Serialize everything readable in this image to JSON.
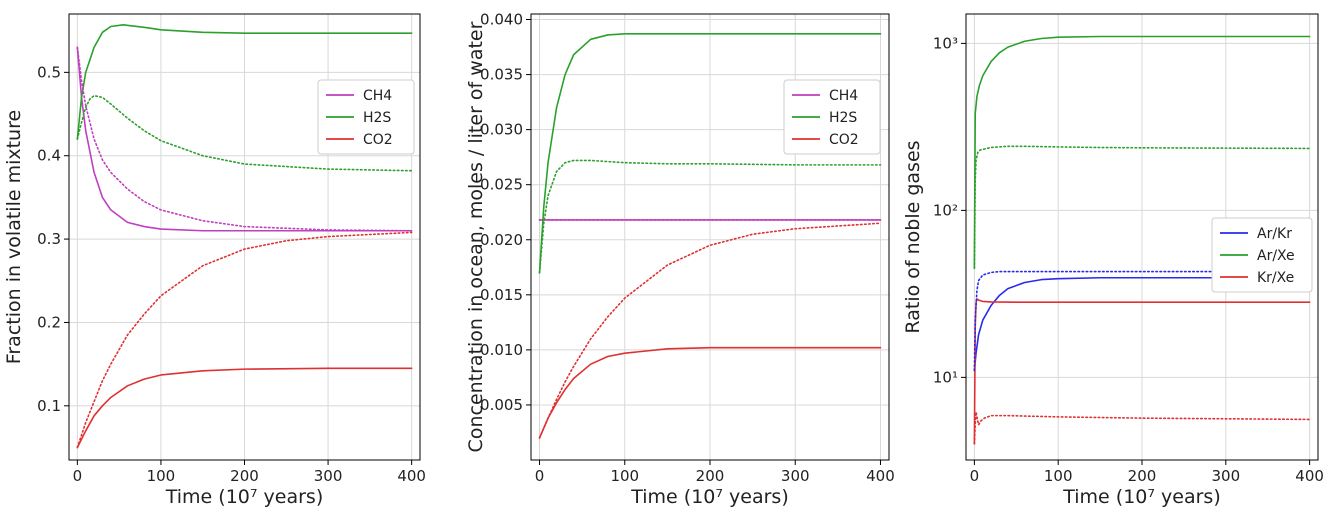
{
  "chart_data": [
    {
      "type": "line",
      "xlabel": "Time (10⁷ years)",
      "ylabel": "Fraction in volatile mixture",
      "xlim": [
        -10,
        410
      ],
      "ylim": [
        0.035,
        0.57
      ],
      "yscale": "linear",
      "xticks": [
        0,
        100,
        200,
        300,
        400
      ],
      "xtick_labels": [
        "0",
        "100",
        "200",
        "300",
        "400"
      ],
      "yticks": [
        0.1,
        0.2,
        0.3,
        0.4,
        0.5
      ],
      "ytick_labels": [
        "0.1",
        "0.2",
        "0.3",
        "0.4",
        "0.5"
      ],
      "grid": true,
      "legend": {
        "placement": "upper-right",
        "entries": [
          {
            "label": "CH4",
            "color": "#bf3fbf"
          },
          {
            "label": "H2S",
            "color": "#2ca02c"
          },
          {
            "label": "CO2",
            "color": "#e03030"
          }
        ]
      },
      "series": [
        {
          "color": "#bf3fbf",
          "style": "solid",
          "x": [
            0,
            5,
            10,
            20,
            30,
            40,
            60,
            80,
            100,
            150,
            200,
            300,
            400
          ],
          "y": [
            0.53,
            0.47,
            0.43,
            0.38,
            0.35,
            0.335,
            0.32,
            0.315,
            0.312,
            0.31,
            0.31,
            0.31,
            0.31
          ]
        },
        {
          "color": "#2ca02c",
          "style": "solid",
          "x": [
            0,
            5,
            10,
            20,
            30,
            40,
            55,
            80,
            100,
            150,
            200,
            300,
            400
          ],
          "y": [
            0.42,
            0.47,
            0.5,
            0.53,
            0.548,
            0.555,
            0.557,
            0.554,
            0.551,
            0.548,
            0.547,
            0.547,
            0.547
          ]
        },
        {
          "color": "#e03030",
          "style": "solid",
          "x": [
            0,
            10,
            20,
            30,
            40,
            60,
            80,
            100,
            150,
            200,
            300,
            400
          ],
          "y": [
            0.05,
            0.07,
            0.088,
            0.1,
            0.11,
            0.124,
            0.132,
            0.137,
            0.142,
            0.144,
            0.145,
            0.145
          ]
        },
        {
          "color": "#bf3fbf",
          "style": "dotted",
          "x": [
            0,
            5,
            10,
            20,
            30,
            40,
            60,
            80,
            100,
            150,
            200,
            300,
            400
          ],
          "y": [
            0.53,
            0.49,
            0.46,
            0.42,
            0.395,
            0.38,
            0.36,
            0.345,
            0.335,
            0.322,
            0.315,
            0.311,
            0.31
          ]
        },
        {
          "color": "#2ca02c",
          "style": "dotted",
          "x": [
            0,
            5,
            10,
            15,
            20,
            30,
            40,
            60,
            80,
            100,
            150,
            200,
            300,
            400
          ],
          "y": [
            0.42,
            0.44,
            0.458,
            0.468,
            0.472,
            0.47,
            0.462,
            0.445,
            0.43,
            0.418,
            0.4,
            0.39,
            0.384,
            0.382
          ]
        },
        {
          "color": "#e03030",
          "style": "dotted",
          "x": [
            0,
            10,
            20,
            30,
            40,
            60,
            80,
            100,
            150,
            200,
            250,
            300,
            400
          ],
          "y": [
            0.05,
            0.08,
            0.105,
            0.13,
            0.15,
            0.185,
            0.21,
            0.232,
            0.268,
            0.288,
            0.298,
            0.303,
            0.308
          ]
        }
      ]
    },
    {
      "type": "line",
      "xlabel": "Time (10⁷ years)",
      "ylabel": "Concentration in ocean, moles / liter of water",
      "xlim": [
        -10,
        410
      ],
      "ylim": [
        0.0,
        0.0405
      ],
      "yscale": "linear",
      "xticks": [
        0,
        100,
        200,
        300,
        400
      ],
      "xtick_labels": [
        "0",
        "100",
        "200",
        "300",
        "400"
      ],
      "yticks": [
        0.005,
        0.01,
        0.015,
        0.02,
        0.025,
        0.03,
        0.035,
        0.04
      ],
      "ytick_labels": [
        "0.005",
        "0.010",
        "0.015",
        "0.020",
        "0.025",
        "0.030",
        "0.035",
        "0.040"
      ],
      "grid": true,
      "legend": {
        "placement": "upper-right",
        "entries": [
          {
            "label": "CH4",
            "color": "#bf3fbf"
          },
          {
            "label": "H2S",
            "color": "#2ca02c"
          },
          {
            "label": "CO2",
            "color": "#e03030"
          }
        ]
      },
      "series": [
        {
          "color": "#bf3fbf",
          "style": "solid",
          "x": [
            0,
            400
          ],
          "y": [
            0.0218,
            0.0218
          ]
        },
        {
          "color": "#2ca02c",
          "style": "solid",
          "x": [
            0,
            5,
            10,
            20,
            30,
            40,
            60,
            80,
            100,
            150,
            200,
            300,
            400
          ],
          "y": [
            0.017,
            0.023,
            0.027,
            0.032,
            0.035,
            0.0368,
            0.0382,
            0.0386,
            0.0387,
            0.0387,
            0.0387,
            0.0387,
            0.0387
          ]
        },
        {
          "color": "#e03030",
          "style": "solid",
          "x": [
            0,
            10,
            20,
            30,
            40,
            60,
            80,
            100,
            150,
            200,
            300,
            400
          ],
          "y": [
            0.002,
            0.0038,
            0.0052,
            0.0064,
            0.0074,
            0.0087,
            0.0094,
            0.0097,
            0.0101,
            0.0102,
            0.0102,
            0.0102
          ]
        },
        {
          "color": "#bf3fbf",
          "style": "dotted",
          "x": [
            0,
            400
          ],
          "y": [
            0.0218,
            0.0218
          ]
        },
        {
          "color": "#2ca02c",
          "style": "dotted",
          "x": [
            0,
            5,
            10,
            20,
            30,
            40,
            60,
            80,
            100,
            150,
            200,
            300,
            400
          ],
          "y": [
            0.017,
            0.0215,
            0.024,
            0.0262,
            0.027,
            0.0272,
            0.0272,
            0.0271,
            0.027,
            0.0269,
            0.0269,
            0.0268,
            0.0268
          ]
        },
        {
          "color": "#e03030",
          "style": "dotted",
          "x": [
            0,
            10,
            20,
            30,
            40,
            60,
            80,
            100,
            150,
            200,
            250,
            300,
            400
          ],
          "y": [
            0.002,
            0.0038,
            0.0055,
            0.0071,
            0.0085,
            0.011,
            0.013,
            0.0147,
            0.0177,
            0.0195,
            0.0205,
            0.021,
            0.0215
          ]
        }
      ]
    },
    {
      "type": "line",
      "xlabel": "Time (10⁷ years)",
      "ylabel": "Ratio of noble gases",
      "xlim": [
        -10,
        410
      ],
      "ylim": [
        3.2,
        1500
      ],
      "yscale": "log",
      "xticks": [
        0,
        100,
        200,
        300,
        400
      ],
      "xtick_labels": [
        "0",
        "100",
        "200",
        "300",
        "400"
      ],
      "yticks": [
        10,
        100,
        1000
      ],
      "ytick_labels": [
        "10¹",
        "10²",
        "10³"
      ],
      "grid": true,
      "legend": {
        "placement": "center-right",
        "entries": [
          {
            "label": "Ar/Kr",
            "color": "#2a2aee"
          },
          {
            "label": "Ar/Xe",
            "color": "#2ca02c"
          },
          {
            "label": "Kr/Xe",
            "color": "#e03030"
          }
        ]
      },
      "series": [
        {
          "color": "#2a2aee",
          "style": "solid",
          "x": [
            0,
            2,
            5,
            10,
            20,
            30,
            40,
            60,
            80,
            100,
            150,
            200,
            300,
            400
          ],
          "y": [
            11,
            14,
            18,
            22,
            27,
            31,
            34,
            37,
            38.5,
            39,
            39.5,
            39.5,
            39.5,
            39.5
          ]
        },
        {
          "color": "#2ca02c",
          "style": "solid",
          "x": [
            0,
            1,
            3,
            6,
            10,
            20,
            30,
            40,
            60,
            80,
            100,
            150,
            200,
            300,
            400
          ],
          "y": [
            45,
            380,
            480,
            560,
            640,
            780,
            880,
            950,
            1030,
            1070,
            1090,
            1100,
            1100,
            1100,
            1100
          ]
        },
        {
          "color": "#e03030",
          "style": "solid",
          "x": [
            0,
            1,
            2,
            3,
            5,
            10,
            20,
            50,
            100,
            200,
            300,
            400
          ],
          "y": [
            4,
            20,
            28,
            29.5,
            29,
            28.5,
            28.3,
            28.2,
            28.2,
            28.2,
            28.2,
            28.2
          ]
        },
        {
          "color": "#2a2aee",
          "style": "dotted",
          "x": [
            0,
            1,
            3,
            5,
            10,
            20,
            30,
            50,
            100,
            200,
            300,
            400
          ],
          "y": [
            11,
            22,
            33,
            38,
            41,
            42.5,
            43,
            43,
            43,
            43,
            43,
            43
          ]
        },
        {
          "color": "#2ca02c",
          "style": "dotted",
          "x": [
            0,
            1,
            2,
            4,
            7,
            10,
            20,
            40,
            60,
            100,
            150,
            200,
            300,
            400
          ],
          "y": [
            45,
            150,
            200,
            222,
            230,
            232,
            238,
            242,
            242,
            240,
            238,
            237,
            236,
            235
          ]
        },
        {
          "color": "#e03030",
          "style": "dotted",
          "x": [
            0,
            1,
            2,
            3,
            5,
            8,
            12,
            20,
            40,
            100,
            200,
            300,
            400
          ],
          "y": [
            4,
            5.2,
            6.2,
            5.8,
            5.2,
            5.5,
            5.7,
            5.9,
            5.9,
            5.8,
            5.7,
            5.65,
            5.6
          ]
        }
      ]
    }
  ]
}
